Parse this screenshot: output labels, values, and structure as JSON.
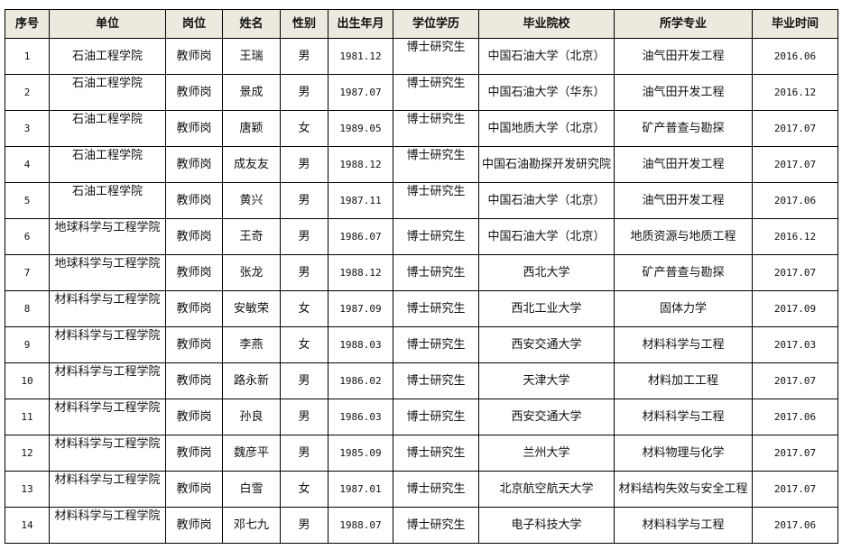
{
  "headers": [
    "序号",
    "单位",
    "岗位",
    "姓名",
    "性别",
    "出生年月",
    "学位学历",
    "毕业院校",
    "所学专业",
    "毕业时间"
  ],
  "rows": [
    [
      "1",
      "石油工程学院",
      "教师岗",
      "王瑞",
      "男",
      "1981.12",
      "博士研究生",
      "中国石油大学（北京）",
      "油气田开发工程",
      "2016.06"
    ],
    [
      "2",
      "石油工程学院",
      "教师岗",
      "景成",
      "男",
      "1987.07",
      "博士研究生",
      "中国石油大学（华东）",
      "油气田开发工程",
      "2016.12"
    ],
    [
      "3",
      "石油工程学院",
      "教师岗",
      "唐颖",
      "女",
      "1989.05",
      "博士研究生",
      "中国地质大学（北京）",
      "矿产普查与勘探",
      "2017.07"
    ],
    [
      "4",
      "石油工程学院",
      "教师岗",
      "成友友",
      "男",
      "1988.12",
      "博士研究生",
      "中国石油勘探开发研究院",
      "油气田开发工程",
      "2017.07"
    ],
    [
      "5",
      "石油工程学院",
      "教师岗",
      "黄兴",
      "男",
      "1987.11",
      "博士研究生",
      "中国石油大学（北京）",
      "油气田开发工程",
      "2017.06"
    ],
    [
      "6",
      "地球科学与工程学院",
      "教师岗",
      "王奇",
      "男",
      "1986.07",
      "博士研究生",
      "中国石油大学（北京）",
      "地质资源与地质工程",
      "2016.12"
    ],
    [
      "7",
      "地球科学与工程学院",
      "教师岗",
      "张龙",
      "男",
      "1988.12",
      "博士研究生",
      "西北大学",
      "矿产普查与勘探",
      "2017.07"
    ],
    [
      "8",
      "材料科学与工程学院",
      "教师岗",
      "安敏荣",
      "女",
      "1987.09",
      "博士研究生",
      "西北工业大学",
      "固体力学",
      "2017.09"
    ],
    [
      "9",
      "材料科学与工程学院",
      "教师岗",
      "李燕",
      "女",
      "1988.03",
      "博士研究生",
      "西安交通大学",
      "材料科学与工程",
      "2017.03"
    ],
    [
      "10",
      "材料科学与工程学院",
      "教师岗",
      "路永新",
      "男",
      "1986.02",
      "博士研究生",
      "天津大学",
      "材料加工工程",
      "2017.07"
    ],
    [
      "11",
      "材料科学与工程学院",
      "教师岗",
      "孙良",
      "男",
      "1986.03",
      "博士研究生",
      "西安交通大学",
      "材料科学与工程",
      "2017.06"
    ],
    [
      "12",
      "材料科学与工程学院",
      "教师岗",
      "魏彦平",
      "男",
      "1985.09",
      "博士研究生",
      "兰州大学",
      "材料物理与化学",
      "2017.07"
    ],
    [
      "13",
      "材料科学与工程学院",
      "教师岗",
      "白雪",
      "女",
      "1987.01",
      "博士研究生",
      "北京航空航天大学",
      "材料结构失效与安全工程",
      "2017.07"
    ],
    [
      "14",
      "材料科学与工程学院",
      "教师岗",
      "邓七九",
      "男",
      "1988.07",
      "博士研究生",
      "电子科技大学",
      "材料科学与工程",
      "2017.06"
    ]
  ]
}
